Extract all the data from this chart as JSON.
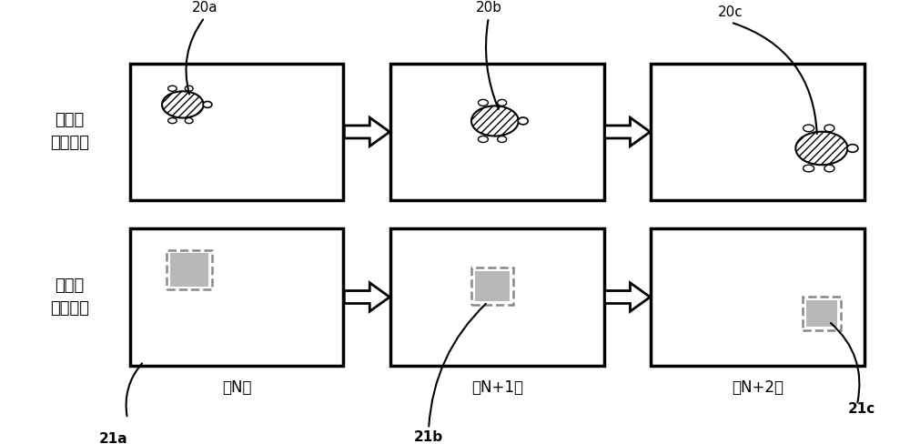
{
  "fig_width": 10.0,
  "fig_height": 4.88,
  "bg_color": "#ffffff",
  "label_row1": "显示屏\n（视觉）",
  "label_row2": "接触面\n（触觉）",
  "frames": [
    "第N帧",
    "第N+1帧",
    "第N+2帧"
  ],
  "labels_top": [
    "20a",
    "20b",
    "20c"
  ],
  "labels_bottom": [
    "21a",
    "21b",
    "21c"
  ],
  "panel_lw": 2.5,
  "arrow_outline_color": "#000000",
  "dashed_rect_color": "#888888",
  "tactile_fill_color": "#b8b8b8",
  "label_fontsize": 13,
  "small_fontsize": 11,
  "frame_fontsize": 12
}
